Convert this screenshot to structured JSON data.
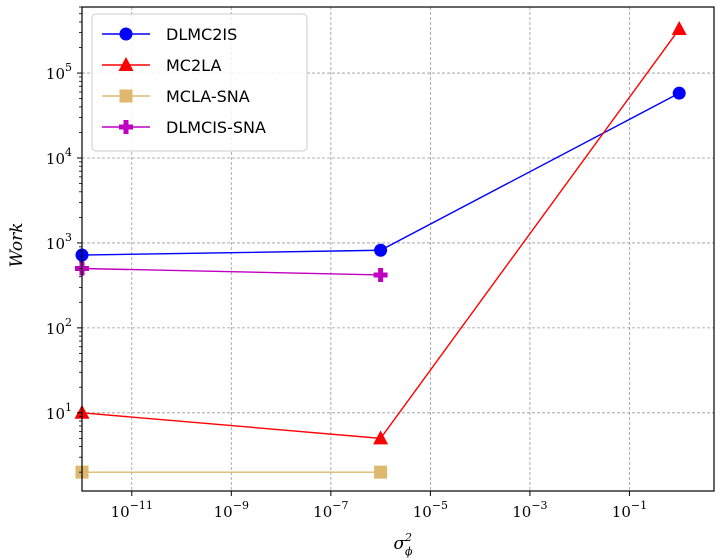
{
  "chart_data": {
    "type": "line",
    "title": "",
    "xlabel": "σ",
    "xlabel_sup": "2",
    "xlabel_sub": "ϕ",
    "ylabel": "Work",
    "x_scale": "log",
    "y_scale": "log",
    "xlim": [
      1e-12,
      5
    ],
    "ylim": [
      1.2,
      600000
    ],
    "grid": true,
    "legend_position": "top-left",
    "x_ticks": [
      {
        "base": "10",
        "exp": "−11",
        "value": 1e-11
      },
      {
        "base": "10",
        "exp": "−9",
        "value": 1e-09
      },
      {
        "base": "10",
        "exp": "−7",
        "value": 1e-07
      },
      {
        "base": "10",
        "exp": "−5",
        "value": 1e-05
      },
      {
        "base": "10",
        "exp": "−3",
        "value": 0.001
      },
      {
        "base": "10",
        "exp": "−1",
        "value": 0.1
      }
    ],
    "y_ticks": [
      {
        "base": "10",
        "exp": "1",
        "value": 10
      },
      {
        "base": "10",
        "exp": "2",
        "value": 100
      },
      {
        "base": "10",
        "exp": "3",
        "value": 1000
      },
      {
        "base": "10",
        "exp": "4",
        "value": 10000
      },
      {
        "base": "10",
        "exp": "5",
        "value": 100000
      }
    ],
    "series": [
      {
        "name": "DLMC2IS",
        "color": "#0000ff",
        "marker": "circle",
        "x": [
          1e-12,
          1e-06,
          1
        ],
        "y": [
          720,
          820,
          58000
        ]
      },
      {
        "name": "MC2LA",
        "color": "#ff0000",
        "marker": "triangle",
        "x": [
          1e-12,
          1e-06,
          1
        ],
        "y": [
          10,
          5,
          330000
        ]
      },
      {
        "name": "MCLA-SNA",
        "color": "#ddb86e",
        "marker": "square",
        "x": [
          1e-12,
          1e-06
        ],
        "y": [
          2,
          2
        ]
      },
      {
        "name": "DLMCIS-SNA",
        "color": "#c000c0",
        "marker": "plus",
        "x": [
          1e-12,
          1e-06
        ],
        "y": [
          500,
          420
        ]
      }
    ]
  }
}
